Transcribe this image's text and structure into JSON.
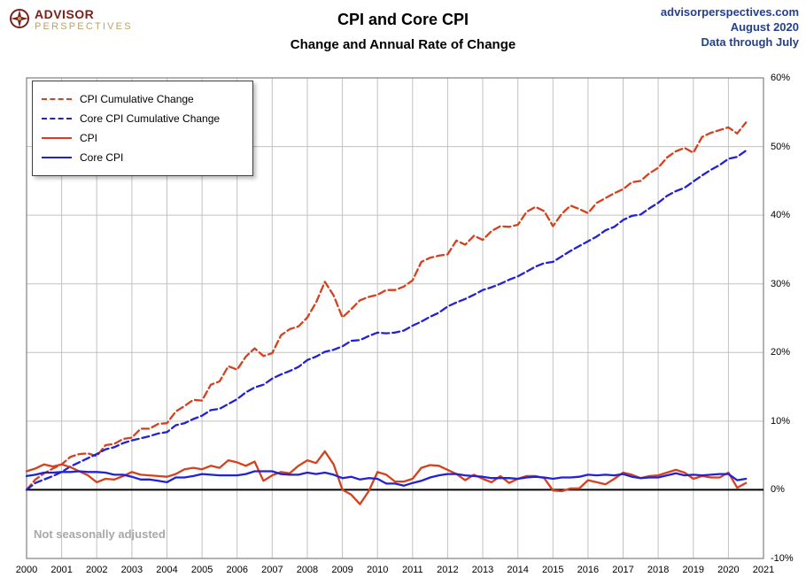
{
  "header": {
    "logo_line1": "ADVISOR",
    "logo_line2": "PERSPECTIVES",
    "site": "advisorperspectives.com",
    "date": "August 2020",
    "data_through": "Data through July"
  },
  "note": "Not seasonally adjusted",
  "colors": {
    "red": "#d5411e",
    "blue": "#2121d5",
    "navy": "#24408e",
    "maroon": "#7b211b",
    "tan": "#b8a264",
    "grid": "#c2c2c2",
    "plot_border": "#7f7f7f",
    "zero_line": "#000000",
    "note_gray": "#a8a8a8"
  },
  "chart_data": {
    "type": "line",
    "title": "CPI and Core CPI",
    "subtitle": "Change and Annual Rate of Change",
    "xlabel": "",
    "ylabel": "",
    "xlim": [
      2000,
      2021
    ],
    "ylim": [
      -10,
      60
    ],
    "grid": true,
    "legend_position": "top-left",
    "y_axis_side": "right",
    "x_ticks": [
      2000,
      2001,
      2002,
      2003,
      2004,
      2005,
      2006,
      2007,
      2008,
      2009,
      2010,
      2011,
      2012,
      2013,
      2014,
      2015,
      2016,
      2017,
      2018,
      2019,
      2020,
      2021
    ],
    "x_tick_labels": [
      "2000",
      "2001",
      "2002",
      "2003",
      "2004",
      "2005",
      "2006",
      "2007",
      "2008",
      "2009",
      "2010",
      "2011",
      "2012",
      "2013",
      "2014",
      "2015",
      "2016",
      "2017",
      "2018",
      "2019",
      "2020",
      "2021"
    ],
    "y_ticks": [
      60,
      50,
      40,
      30,
      20,
      10,
      0,
      -10
    ],
    "y_tick_labels": [
      "60%",
      "50%",
      "40%",
      "30%",
      "20%",
      "10%",
      "0%",
      "-10%"
    ],
    "x": [
      2000,
      2000.25,
      2000.5,
      2000.75,
      2001,
      2001.25,
      2001.5,
      2001.75,
      2002,
      2002.25,
      2002.5,
      2002.75,
      2003,
      2003.25,
      2003.5,
      2003.75,
      2004,
      2004.25,
      2004.5,
      2004.75,
      2005,
      2005.25,
      2005.5,
      2005.75,
      2006,
      2006.25,
      2006.5,
      2006.75,
      2007,
      2007.25,
      2007.5,
      2007.75,
      2008,
      2008.25,
      2008.5,
      2008.75,
      2009,
      2009.25,
      2009.5,
      2009.75,
      2010,
      2010.25,
      2010.5,
      2010.75,
      2011,
      2011.25,
      2011.5,
      2011.75,
      2012,
      2012.25,
      2012.5,
      2012.75,
      2013,
      2013.25,
      2013.5,
      2013.75,
      2014,
      2014.25,
      2014.5,
      2014.75,
      2015,
      2015.25,
      2015.5,
      2015.75,
      2016,
      2016.25,
      2016.5,
      2016.75,
      2017,
      2017.25,
      2017.5,
      2017.75,
      2018,
      2018.25,
      2018.5,
      2018.75,
      2019,
      2019.25,
      2019.5,
      2019.75,
      2020,
      2020.25,
      2020.5
    ],
    "series": [
      {
        "name": "CPI Cumulative Change",
        "style": "dashed",
        "color_key": "red",
        "values": [
          0.0,
          1.5,
          2.4,
          3.1,
          3.7,
          4.8,
          5.2,
          5.3,
          4.9,
          6.5,
          6.7,
          7.4,
          7.6,
          8.9,
          8.9,
          9.6,
          9.7,
          11.4,
          12.2,
          13.1,
          13.0,
          15.3,
          15.8,
          18.0,
          17.5,
          19.4,
          20.6,
          19.5,
          19.9,
          22.5,
          23.4,
          23.8,
          25.1,
          27.3,
          30.3,
          28.3,
          25.1,
          26.3,
          27.6,
          28.1,
          28.4,
          29.1,
          29.1,
          29.6,
          30.5,
          33.2,
          33.8,
          34.1,
          34.3,
          36.3,
          35.7,
          37.0,
          36.4,
          37.7,
          38.4,
          38.3,
          38.6,
          40.5,
          41.2,
          40.6,
          38.4,
          40.2,
          41.4,
          40.9,
          40.3,
          41.8,
          42.5,
          43.2,
          43.8,
          44.8,
          45.0,
          46.1,
          46.9,
          48.4,
          49.3,
          49.8,
          49.1,
          51.4,
          52.0,
          52.4,
          52.8,
          51.9,
          53.5
        ]
      },
      {
        "name": "Core CPI Cumulative Change",
        "style": "dashed",
        "color_key": "blue",
        "values": [
          0.0,
          1.0,
          1.5,
          2.0,
          2.6,
          3.4,
          4.0,
          4.6,
          5.2,
          5.9,
          6.2,
          6.8,
          7.2,
          7.5,
          7.8,
          8.2,
          8.4,
          9.4,
          9.7,
          10.3,
          10.8,
          11.6,
          11.8,
          12.5,
          13.2,
          14.2,
          14.9,
          15.3,
          16.2,
          16.8,
          17.3,
          17.9,
          18.9,
          19.4,
          20.1,
          20.4,
          20.9,
          21.7,
          21.8,
          22.4,
          22.9,
          22.8,
          22.9,
          23.2,
          23.9,
          24.5,
          25.2,
          25.8,
          26.7,
          27.3,
          27.8,
          28.4,
          29.1,
          29.5,
          30.0,
          30.6,
          31.1,
          31.8,
          32.5,
          33.0,
          33.2,
          34.0,
          34.8,
          35.5,
          36.2,
          36.9,
          37.8,
          38.3,
          39.3,
          39.9,
          40.1,
          41.0,
          41.8,
          42.8,
          43.5,
          44.0,
          44.9,
          45.8,
          46.6,
          47.3,
          48.2,
          48.5,
          49.4
        ]
      },
      {
        "name": "CPI",
        "style": "solid",
        "color_key": "red",
        "values": [
          2.7,
          3.1,
          3.7,
          3.4,
          3.7,
          3.3,
          2.7,
          2.1,
          1.1,
          1.6,
          1.5,
          2.0,
          2.6,
          2.2,
          2.1,
          2.0,
          1.9,
          2.3,
          3.0,
          3.2,
          3.0,
          3.5,
          3.2,
          4.3,
          4.0,
          3.5,
          4.1,
          1.3,
          2.1,
          2.6,
          2.4,
          3.5,
          4.3,
          3.9,
          5.6,
          3.7,
          0.0,
          -0.7,
          -2.1,
          -0.2,
          2.6,
          2.2,
          1.2,
          1.2,
          1.6,
          3.2,
          3.6,
          3.5,
          2.9,
          2.3,
          1.4,
          2.2,
          1.6,
          1.1,
          2.0,
          1.0,
          1.6,
          2.0,
          2.0,
          1.7,
          -0.1,
          -0.2,
          0.2,
          0.2,
          1.4,
          1.1,
          0.8,
          1.6,
          2.5,
          2.2,
          1.7,
          2.0,
          2.1,
          2.5,
          2.9,
          2.5,
          1.6,
          2.0,
          1.8,
          1.8,
          2.5,
          0.3,
          1.0
        ]
      },
      {
        "name": "Core CPI",
        "style": "solid",
        "color_key": "blue",
        "values": [
          2.0,
          2.2,
          2.5,
          2.5,
          2.6,
          2.6,
          2.7,
          2.6,
          2.6,
          2.5,
          2.2,
          2.2,
          1.9,
          1.5,
          1.5,
          1.3,
          1.1,
          1.8,
          1.8,
          2.0,
          2.3,
          2.2,
          2.1,
          2.1,
          2.1,
          2.3,
          2.7,
          2.7,
          2.7,
          2.3,
          2.2,
          2.2,
          2.5,
          2.3,
          2.5,
          2.2,
          1.7,
          1.9,
          1.5,
          1.7,
          1.6,
          0.9,
          0.9,
          0.6,
          1.0,
          1.3,
          1.8,
          2.1,
          2.3,
          2.3,
          2.1,
          2.0,
          1.9,
          1.7,
          1.7,
          1.7,
          1.6,
          1.8,
          1.9,
          1.8,
          1.6,
          1.8,
          1.8,
          1.9,
          2.2,
          2.1,
          2.2,
          2.1,
          2.3,
          1.9,
          1.7,
          1.8,
          1.8,
          2.1,
          2.4,
          2.1,
          2.2,
          2.1,
          2.2,
          2.3,
          2.3,
          1.4,
          1.6
        ]
      }
    ]
  }
}
